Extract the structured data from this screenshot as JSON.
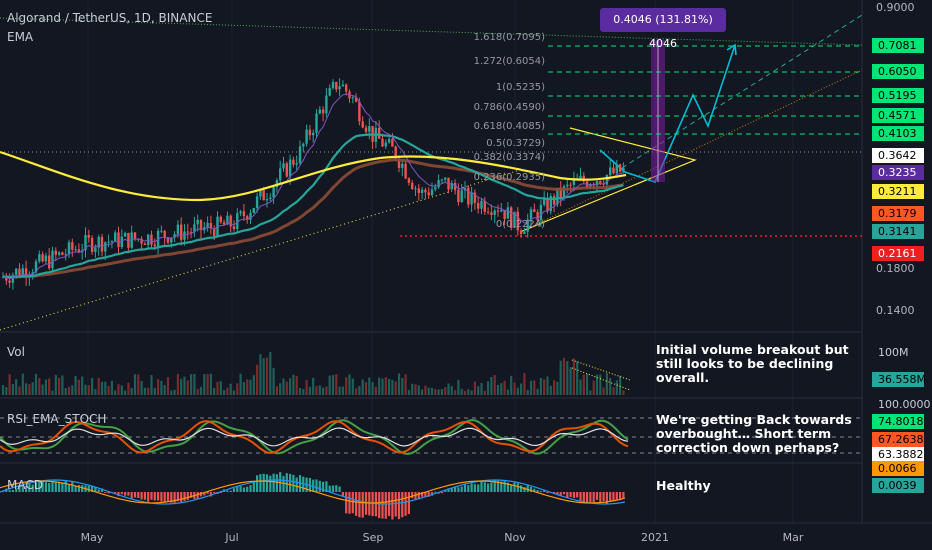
{
  "header": {
    "symbol_line": "Algorand / TetherUS, 1D, BINANCE",
    "ema_label": "EMA"
  },
  "panes": {
    "vol_label": "Vol",
    "rsi_label": "RSI_EMA_STOCH",
    "macd_label": "MACD"
  },
  "measure_box": "0.4046 (131.81%) 4046",
  "fib_levels": [
    {
      "label": "1.618(0.7095)",
      "value": 0.7095
    },
    {
      "label": "1.272(0.6054)",
      "value": 0.6054
    },
    {
      "label": "1(0.5235)",
      "value": 0.5235
    },
    {
      "label": "0.786(0.4590)",
      "value": 0.459
    },
    {
      "label": "0.618(0.4085)",
      "value": 0.4085
    },
    {
      "label": "0.5(0.3729)",
      "value": 0.3729
    },
    {
      "label": "0.382(0.3374)",
      "value": 0.3374
    },
    {
      "label": "0.236(0.2935)",
      "value": 0.2935
    },
    {
      "label": "0(0.2224)",
      "value": 0.2224
    }
  ],
  "price_axis_ticks": [
    "0.9000",
    "0.1800",
    "0.1400"
  ],
  "price_badges": [
    {
      "text": "0.7081",
      "bg": "#00e676"
    },
    {
      "text": "0.6050",
      "bg": "#00e676"
    },
    {
      "text": "0.5195",
      "bg": "#00e676"
    },
    {
      "text": "0.4571",
      "bg": "#00e676"
    },
    {
      "text": "0.4103",
      "bg": "#00e676"
    },
    {
      "text": "0.3642",
      "bg": "#ffffff"
    },
    {
      "text": "0.3235",
      "bg": "#5b2ca0",
      "fg": "#ffffff"
    },
    {
      "text": "0.3211",
      "bg": "#ffeb3b"
    },
    {
      "text": "0.3179",
      "bg": "#ff5722"
    },
    {
      "text": "0.3141",
      "bg": "#26a69a"
    },
    {
      "text": "0.2161",
      "bg": "#f21d1d",
      "fg": "#ffffff"
    }
  ],
  "vol_badges": [
    {
      "text": "100M",
      "bg": "transparent",
      "fg": "#c8ccd6"
    },
    {
      "text": "36.558M",
      "bg": "#26a69a"
    }
  ],
  "rsi_badges": [
    {
      "text": "100.0000",
      "bg": "transparent",
      "fg": "#c8ccd6"
    },
    {
      "text": "74.8018",
      "bg": "#00e676"
    },
    {
      "text": "67.2638",
      "bg": "#ff5722"
    },
    {
      "text": "63.3882",
      "bg": "#ffffff"
    }
  ],
  "macd_badges": [
    {
      "text": "0.0066",
      "bg": "#ff9800"
    },
    {
      "text": "0.0039",
      "bg": "#26a69a"
    }
  ],
  "annotations": {
    "volume": [
      "Initial volume breakout but",
      "still looks to be declining",
      "overall."
    ],
    "rsi": [
      "We're getting Back towards",
      "overbought… Short term",
      "correction down perhaps?"
    ],
    "macd": [
      "Healthy"
    ]
  },
  "time_axis": [
    "May",
    "Jul",
    "Sep",
    "Nov",
    "2021",
    "Mar"
  ],
  "colors": {
    "background": "#131722",
    "up": "#26a69a",
    "down": "#ef5350",
    "ema_yellow": "#ffeb3b",
    "ema_teal": "#26a69a",
    "ema_brown": "#8d4b34",
    "projection": "#00bcd4",
    "target_green": "#00e676"
  },
  "chart_data": {
    "type": "candlestick",
    "title": "Algorand / TetherUS, 1D, BINANCE",
    "x_ticks": [
      "May",
      "Jul",
      "Sep",
      "Nov",
      "2021",
      "Mar"
    ],
    "y_scale": "log",
    "ylim": [
      0.13,
      0.9
    ],
    "price_keyframes": [
      {
        "x": "Apr",
        "close": 0.18
      },
      {
        "x": "May",
        "close": 0.21
      },
      {
        "x": "Jun",
        "close": 0.22
      },
      {
        "x": "Jul",
        "close": 0.25
      },
      {
        "x": "Aug",
        "close": 0.52
      },
      {
        "x": "Sep",
        "close": 0.36
      },
      {
        "x": "Oct",
        "close": 0.27
      },
      {
        "x": "Nov",
        "close": 0.25
      },
      {
        "x": "Dec",
        "close": 0.3235
      }
    ],
    "target_levels": [
      0.7081,
      0.605,
      0.5195,
      0.4571,
      0.4103
    ],
    "last_price": 0.3235,
    "support_level": 0.2161
  }
}
